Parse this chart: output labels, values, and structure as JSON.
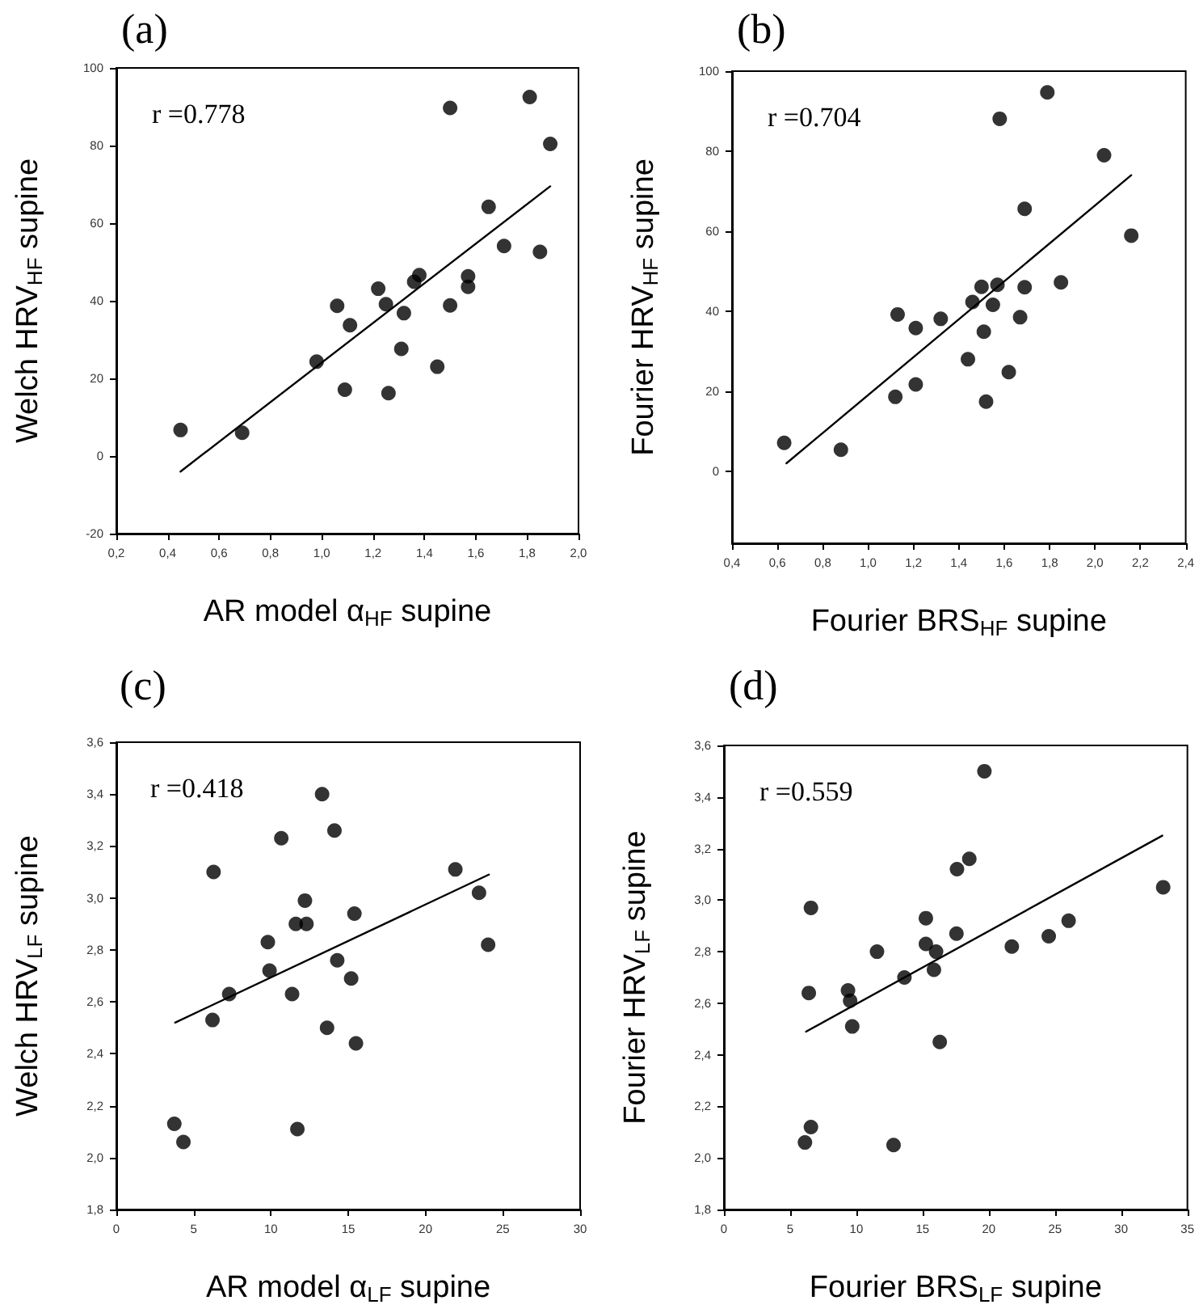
{
  "chart_data": [
    {
      "type": "scatter",
      "title": "(a)",
      "xlabel": "AR model α$_{HF}$ supine",
      "ylabel": "Welch HRV$_{HF}$ supine",
      "annotations": [
        "r =0.778"
      ],
      "marker": "circle",
      "xlim": [
        0.2,
        2.0
      ],
      "xticks": [
        {
          "value": 0.2,
          "label": "0,2"
        },
        {
          "value": 0.4,
          "label": "0,4"
        },
        {
          "value": 0.6,
          "label": "0,6"
        },
        {
          "value": 0.8,
          "label": "0,8"
        },
        {
          "value": 1.0,
          "label": "1,0"
        },
        {
          "value": 1.2,
          "label": "1,2"
        },
        {
          "value": 1.4,
          "label": "1,4"
        },
        {
          "value": 1.6,
          "label": "1,6"
        },
        {
          "value": 1.8,
          "label": "1,8"
        },
        {
          "value": 2.0,
          "label": "2,0"
        }
      ],
      "ylim": [
        -20,
        100
      ],
      "yticks": [
        -20,
        0,
        20,
        40,
        60,
        80,
        100
      ],
      "series": [
        {
          "color": "#000000",
          "x": [
            0.45,
            0.69,
            0.98,
            1.06,
            1.09,
            1.11,
            1.22,
            1.25,
            1.26,
            1.31,
            1.32,
            1.36,
            1.38,
            1.45,
            1.5,
            1.5,
            1.57,
            1.57,
            1.65,
            1.71,
            1.81,
            1.85,
            1.89
          ],
          "values": [
            6.7,
            6.0,
            24.3,
            38.7,
            17.1,
            33.7,
            43.1,
            39.1,
            16.2,
            27.6,
            36.8,
            44.9,
            46.6,
            23.0,
            89.7,
            38.8,
            46.3,
            43.6,
            64.2,
            54.1,
            92.5,
            52.6,
            80.4
          ]
        },
        {
          "type": "line",
          "marker": "none",
          "color": "#000000",
          "x": [
            0.45,
            1.89
          ],
          "values": [
            -4,
            69.5
          ]
        }
      ]
    },
    {
      "type": "scatter",
      "title": "(b)",
      "xlabel": "Fourier BRS$_{HF}$ supine",
      "ylabel": "Fourier HRV$_{HF}$ supine",
      "annotations": [
        "r =0.704"
      ],
      "marker": "circle",
      "xlim": [
        0.4,
        2.4
      ],
      "xticks": [
        {
          "value": 0.4,
          "label": "0,4"
        },
        {
          "value": 0.6,
          "label": "0,6"
        },
        {
          "value": 0.8,
          "label": "0,8"
        },
        {
          "value": 1.0,
          "label": "1,0"
        },
        {
          "value": 1.2,
          "label": "1,2"
        },
        {
          "value": 1.4,
          "label": "1,4"
        },
        {
          "value": 1.6,
          "label": "1,6"
        },
        {
          "value": 1.8,
          "label": "1,8"
        },
        {
          "value": 2.0,
          "label": "2,0"
        },
        {
          "value": 2.2,
          "label": "2,2"
        },
        {
          "value": 2.4,
          "label": "2,4"
        }
      ],
      "ylim": [
        -18,
        100
      ],
      "yticks": [
        0,
        20,
        40,
        60,
        80,
        100
      ],
      "series": [
        {
          "color": "#000000",
          "x": [
            0.63,
            0.88,
            1.12,
            1.13,
            1.21,
            1.21,
            1.32,
            1.44,
            1.46,
            1.5,
            1.51,
            1.52,
            1.55,
            1.57,
            1.58,
            1.62,
            1.67,
            1.69,
            1.69,
            1.79,
            1.85,
            2.04,
            2.16
          ],
          "values": [
            7.1,
            5.4,
            18.6,
            39.2,
            35.8,
            21.7,
            38.1,
            28.0,
            42.3,
            46.1,
            34.9,
            17.4,
            41.6,
            46.6,
            88.1,
            24.8,
            38.5,
            65.6,
            46.0,
            94.7,
            47.2,
            79.0,
            58.9
          ]
        },
        {
          "type": "line",
          "marker": "none",
          "color": "#000000",
          "x": [
            0.64,
            2.16
          ],
          "values": [
            2,
            74
          ]
        }
      ]
    },
    {
      "type": "scatter",
      "title": "(c)",
      "xlabel": "AR model α$_{LF}$ supine",
      "ylabel": "Welch HRV$_{LF}$ supine",
      "annotations": [
        "r =0.418"
      ],
      "marker": "circle",
      "xlim": [
        0,
        30
      ],
      "xticks": [
        0,
        5,
        10,
        15,
        20,
        25,
        30
      ],
      "ylim": [
        1.8,
        3.6
      ],
      "yticks": [
        {
          "value": 1.8,
          "label": "1,8"
        },
        {
          "value": 2.0,
          "label": "2,0"
        },
        {
          "value": 2.2,
          "label": "2,2"
        },
        {
          "value": 2.4,
          "label": "2,4"
        },
        {
          "value": 2.6,
          "label": "2,6"
        },
        {
          "value": 2.8,
          "label": "2,8"
        },
        {
          "value": 3.0,
          "label": "3,0"
        },
        {
          "value": 3.2,
          "label": "3,2"
        },
        {
          "value": 3.4,
          "label": "3,4"
        },
        {
          "value": 3.6,
          "label": "3,6"
        }
      ],
      "series": [
        {
          "color": "#000000",
          "x": [
            3.75,
            4.34,
            6.29,
            6.22,
            7.3,
            9.8,
            9.91,
            10.67,
            11.37,
            11.61,
            11.71,
            12.2,
            12.3,
            13.31,
            13.63,
            14.11,
            14.29,
            15.19,
            15.4,
            15.5,
            21.93,
            23.46,
            24.05
          ],
          "values": [
            2.13,
            2.06,
            3.1,
            2.53,
            2.63,
            2.83,
            2.72,
            3.23,
            2.63,
            2.9,
            2.11,
            2.99,
            2.9,
            3.4,
            2.5,
            3.26,
            2.76,
            2.69,
            2.94,
            2.44,
            3.11,
            3.02,
            2.82
          ]
        },
        {
          "type": "line",
          "marker": "none",
          "color": "#000000",
          "x": [
            3.8,
            24.1
          ],
          "values": [
            2.52,
            3.09
          ]
        }
      ]
    },
    {
      "type": "scatter",
      "title": "(d)",
      "xlabel": "Fourier BRS$_{LF}$ supine",
      "ylabel": "Fourier HRV$_{LF}$ supine",
      "annotations": [
        "r =0.559"
      ],
      "marker": "circle",
      "xlim": [
        0,
        35
      ],
      "xticks": [
        0,
        5,
        10,
        15,
        20,
        25,
        30,
        35
      ],
      "ylim": [
        1.8,
        3.6
      ],
      "yticks": [
        {
          "value": 1.8,
          "label": "1,8"
        },
        {
          "value": 2.0,
          "label": "2,0"
        },
        {
          "value": 2.2,
          "label": "2,2"
        },
        {
          "value": 2.4,
          "label": "2,4"
        },
        {
          "value": 2.6,
          "label": "2,6"
        },
        {
          "value": 2.8,
          "label": "2,8"
        },
        {
          "value": 3.0,
          "label": "3,0"
        },
        {
          "value": 3.2,
          "label": "3,2"
        },
        {
          "value": 3.4,
          "label": "3,4"
        },
        {
          "value": 3.6,
          "label": "3,6"
        }
      ],
      "series": [
        {
          "color": "#000000",
          "x": [
            6.12,
            6.57,
            6.41,
            6.57,
            9.37,
            9.53,
            9.69,
            11.56,
            12.81,
            13.63,
            15.25,
            15.25,
            15.86,
            16.02,
            16.3,
            17.6,
            17.56,
            18.53,
            19.67,
            21.74,
            24.53,
            26.03,
            33.17
          ],
          "values": [
            2.06,
            2.12,
            2.64,
            2.97,
            2.65,
            2.61,
            2.51,
            2.8,
            2.05,
            2.7,
            2.93,
            2.83,
            2.73,
            2.8,
            2.45,
            3.12,
            2.87,
            3.16,
            3.5,
            2.82,
            2.86,
            2.92,
            3.05
          ]
        },
        {
          "type": "line",
          "marker": "none",
          "color": "#000000",
          "x": [
            6.2,
            33.1
          ],
          "values": [
            2.49,
            3.25
          ]
        }
      ]
    }
  ]
}
